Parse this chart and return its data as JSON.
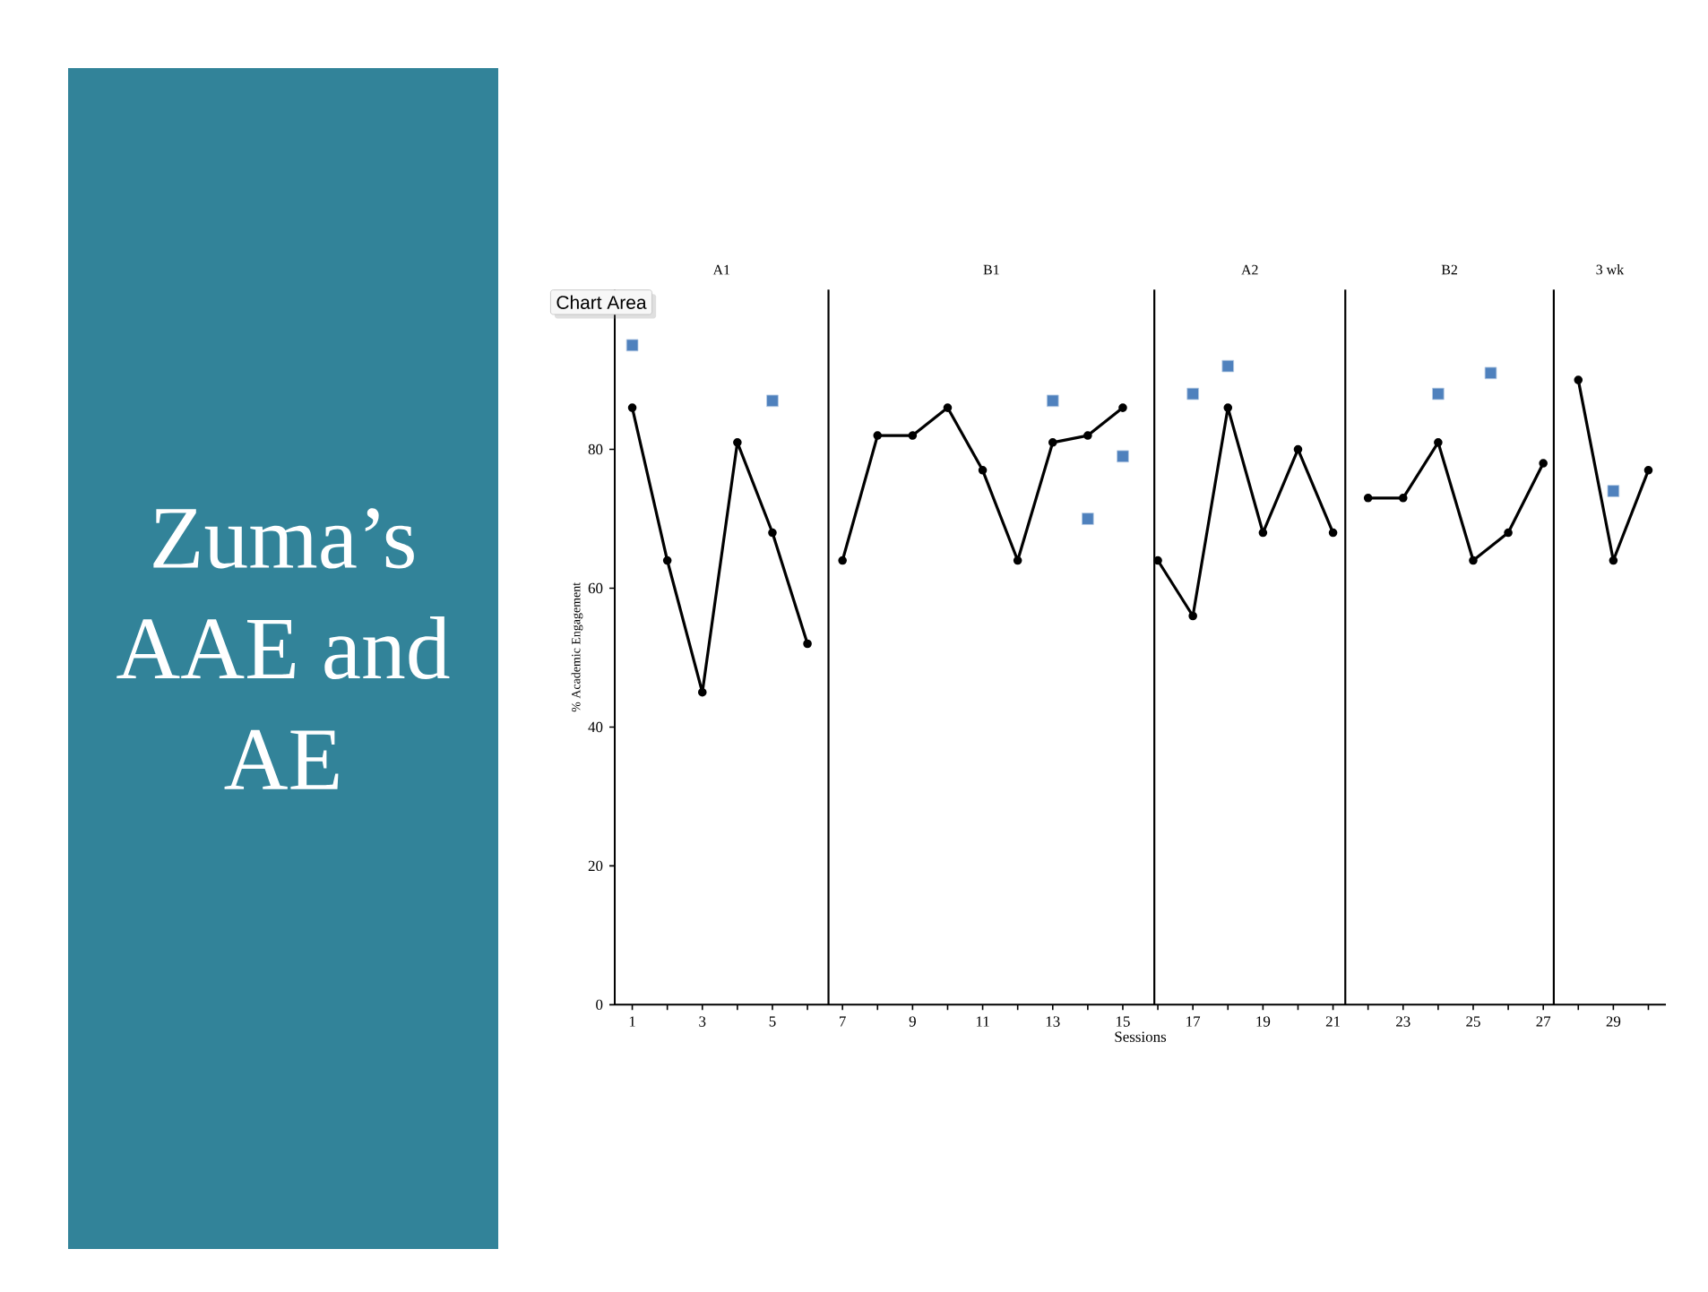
{
  "chart_data": {
    "type": "line",
    "title": "Zuma’s AAE and AE",
    "xlabel": "Sessions",
    "ylabel": "% Academic Engagement",
    "xlim": [
      0.5,
      30.5
    ],
    "ylim": [
      0,
      103
    ],
    "xticks": [
      1,
      {
        "value": 2,
        "label": null
      },
      3,
      {
        "value": 4,
        "label": null
      },
      5,
      {
        "value": 6,
        "label": null
      },
      7,
      {
        "value": 8,
        "label": null
      },
      9,
      {
        "value": 10,
        "label": null
      },
      11,
      {
        "value": 12,
        "label": null
      },
      13,
      {
        "value": 14,
        "label": null
      },
      15,
      {
        "value": 16,
        "label": null
      },
      17,
      {
        "value": 18,
        "label": null
      },
      19,
      {
        "value": 20,
        "label": null
      },
      21,
      {
        "value": 22,
        "label": null
      },
      23,
      {
        "value": 24,
        "label": null
      },
      25,
      {
        "value": 26,
        "label": null
      },
      27,
      {
        "value": 28,
        "label": null
      },
      29,
      {
        "value": 30,
        "label": null
      }
    ],
    "yticks": [
      0,
      20,
      40,
      60,
      80
    ],
    "series": [
      {
        "color": "#000000",
        "marker": "circle",
        "line_style": "solid",
        "x": [
          1,
          2,
          3,
          4,
          5,
          6
        ],
        "values": [
          86,
          64,
          45,
          81,
          68,
          52
        ]
      },
      {
        "color": "#000000",
        "marker": "circle",
        "line_style": "solid",
        "x": [
          7,
          8,
          9,
          10,
          11,
          12,
          13,
          14,
          15
        ],
        "values": [
          64,
          82,
          82,
          86,
          77,
          64,
          81,
          82,
          86
        ]
      },
      {
        "color": "#000000",
        "marker": "circle",
        "line_style": "solid",
        "x": [
          16,
          17,
          18,
          19,
          20,
          21
        ],
        "values": [
          64,
          56,
          86,
          68,
          80,
          68
        ]
      },
      {
        "color": "#000000",
        "marker": "circle",
        "line_style": "solid",
        "x": [
          22,
          23,
          24,
          25,
          26,
          27
        ],
        "values": [
          73,
          73,
          81,
          64,
          68,
          78
        ]
      },
      {
        "color": "#000000",
        "marker": "circle",
        "line_style": "solid",
        "x": [
          28,
          29,
          30
        ],
        "values": [
          90,
          64,
          77
        ]
      },
      {
        "type": "scatter",
        "color": "#4f81bd",
        "marker": "square",
        "x": [
          1,
          5,
          13,
          14,
          15,
          17,
          18,
          24,
          25.5,
          29
        ],
        "values": [
          95,
          87,
          87,
          70,
          79,
          88,
          92,
          88,
          91,
          74
        ]
      }
    ],
    "ref_lines": [
      {
        "axis": "x",
        "value": 6.6,
        "color": "#000000"
      },
      {
        "axis": "x",
        "value": 15.9,
        "color": "#000000"
      },
      {
        "axis": "x",
        "value": 21.35,
        "color": "#000000"
      },
      {
        "axis": "x",
        "value": 27.3,
        "color": "#000000"
      }
    ],
    "annotations": [
      "A1",
      "B1",
      "A2",
      "B2",
      "3 wk",
      "Chart Area"
    ]
  }
}
